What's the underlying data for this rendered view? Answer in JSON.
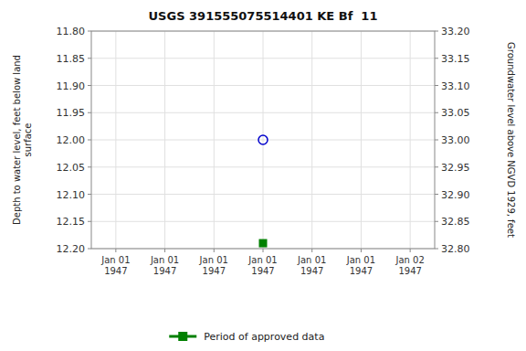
{
  "chart_data": {
    "type": "scatter",
    "title": "USGS 391555075514401 KE Bf  11",
    "ylabel": "Depth to water level, feet below land\nsurface",
    "y2label": "Groundwater level above NGVD 1929, feet",
    "categories": [
      "Jan 01\n1947",
      "Jan 01\n1947",
      "Jan 01\n1947",
      "Jan 01\n1947",
      "Jan 01\n1947",
      "Jan 01\n1947",
      "Jan 02\n1947"
    ],
    "ylim": [
      12.2,
      11.8
    ],
    "yticks": [
      {
        "value": 11.8,
        "label": "11.80"
      },
      11.85,
      {
        "value": 11.9,
        "label": "11.90"
      },
      11.95,
      {
        "value": 12.0,
        "label": "12.00"
      },
      12.05,
      {
        "value": 12.1,
        "label": "12.10"
      },
      12.15,
      {
        "value": 12.2,
        "label": "12.20"
      }
    ],
    "y2lim": [
      32.8,
      33.2
    ],
    "y2ticks": [
      {
        "value": 33.2,
        "label": "33.20"
      },
      33.15,
      {
        "value": 33.1,
        "label": "33.10"
      },
      33.05,
      {
        "value": 33.0,
        "label": "33.00"
      },
      32.95,
      {
        "value": 32.9,
        "label": "32.90"
      },
      32.85,
      {
        "value": 32.8,
        "label": "32.80"
      }
    ],
    "grid": true,
    "legend": "bottom",
    "series": [
      {
        "color": "#0000cc",
        "marker": "circle",
        "values": [
          null,
          null,
          null,
          12.0,
          null,
          null,
          null
        ]
      },
      {
        "name": "Period of approved data",
        "color": "#008000",
        "marker": "square",
        "values": [
          null,
          null,
          null,
          12.19,
          null,
          null,
          null
        ]
      }
    ]
  }
}
